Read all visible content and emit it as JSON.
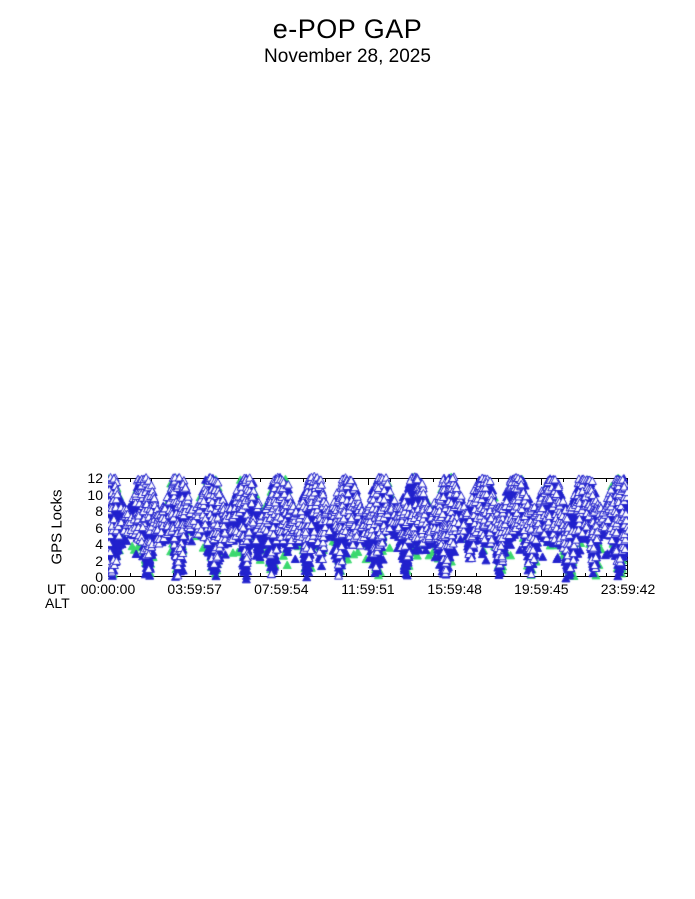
{
  "header": {
    "title": "e-POP GAP",
    "subtitle": "November 28, 2025"
  },
  "chart_data": {
    "type": "scatter",
    "title": "e-POP GAP",
    "subtitle": "November 28, 2025",
    "ylabel": "GPS Locks",
    "x_axis_prefix": "UT",
    "x_axis_secondary_label": "ALT",
    "ylim": [
      0,
      12
    ],
    "ytick_values": [
      12,
      10,
      8,
      6,
      4,
      2,
      0
    ],
    "ytick_labels": [
      "12",
      "10",
      "8",
      "6",
      "4",
      "2",
      "0"
    ],
    "y_minor_step": 0.5,
    "xlim_hours": [
      0,
      24
    ],
    "xtick_hours": [
      0,
      4,
      8,
      12,
      16,
      20,
      24
    ],
    "xtick_labels": [
      "00:00:00",
      "03:59:57",
      "07:59:54",
      "11:59:51",
      "15:59:48",
      "19:59:45",
      "23:59:42"
    ],
    "x_minor_count": 3,
    "grid": false,
    "legend": null,
    "marker": "triangle-up",
    "marker_colors": {
      "filled": "#2222CD",
      "open_fill": "#FFFFFF",
      "edge": "#2222CD",
      "secondary": "#3BD96E",
      "axis": "#000000",
      "background": "#FFFFFF"
    },
    "series": [
      {
        "name": "gps-locks-filled",
        "style": "filled-triangle",
        "color": "#2222CD"
      },
      {
        "name": "gps-locks-open",
        "style": "open-triangle",
        "color": "#2222CD"
      },
      {
        "name": "gps-locks-secondary",
        "style": "filled-triangle",
        "color": "#3BD96E"
      }
    ],
    "band_envelope": {
      "lo_base": 5.1,
      "lo_amp": 0.9,
      "lo_period_hours": 3.13,
      "hi_base": 10.2,
      "hi_amp": 2.3,
      "hi_period_hours": 1.566
    },
    "gap_dips": [
      {
        "t": 0.15,
        "w": 0.45,
        "min": 0
      },
      {
        "t": 1.85,
        "w": 0.3,
        "min": 0
      },
      {
        "t": 3.25,
        "w": 0.3,
        "min": 0
      },
      {
        "t": 4.9,
        "w": 0.35,
        "min": 0
      },
      {
        "t": 6.35,
        "w": 0.2,
        "min": 0
      },
      {
        "t": 6.95,
        "w": 0.15,
        "min": 2
      },
      {
        "t": 7.6,
        "w": 0.25,
        "min": 0
      },
      {
        "t": 8.3,
        "w": 0.15,
        "min": 3
      },
      {
        "t": 9.2,
        "w": 0.28,
        "min": 0
      },
      {
        "t": 9.85,
        "w": 0.15,
        "min": 2
      },
      {
        "t": 10.7,
        "w": 0.22,
        "min": 0
      },
      {
        "t": 11.4,
        "w": 0.15,
        "min": 4
      },
      {
        "t": 12.4,
        "w": 0.32,
        "min": 0
      },
      {
        "t": 13.75,
        "w": 0.28,
        "min": 0
      },
      {
        "t": 14.6,
        "w": 0.15,
        "min": 4
      },
      {
        "t": 15.55,
        "w": 0.4,
        "min": 0
      },
      {
        "t": 16.75,
        "w": 0.22,
        "min": 2
      },
      {
        "t": 18.1,
        "w": 0.28,
        "min": 0
      },
      {
        "t": 19.5,
        "w": 0.28,
        "min": 0
      },
      {
        "t": 20.3,
        "w": 0.15,
        "min": 4
      },
      {
        "t": 21.3,
        "w": 0.38,
        "min": 0
      },
      {
        "t": 22.45,
        "w": 0.22,
        "min": 0
      },
      {
        "t": 23.6,
        "w": 0.32,
        "min": 0
      }
    ],
    "sample_step_hours": 0.03,
    "marker_y_step": 0.42,
    "seed": 20251128
  }
}
